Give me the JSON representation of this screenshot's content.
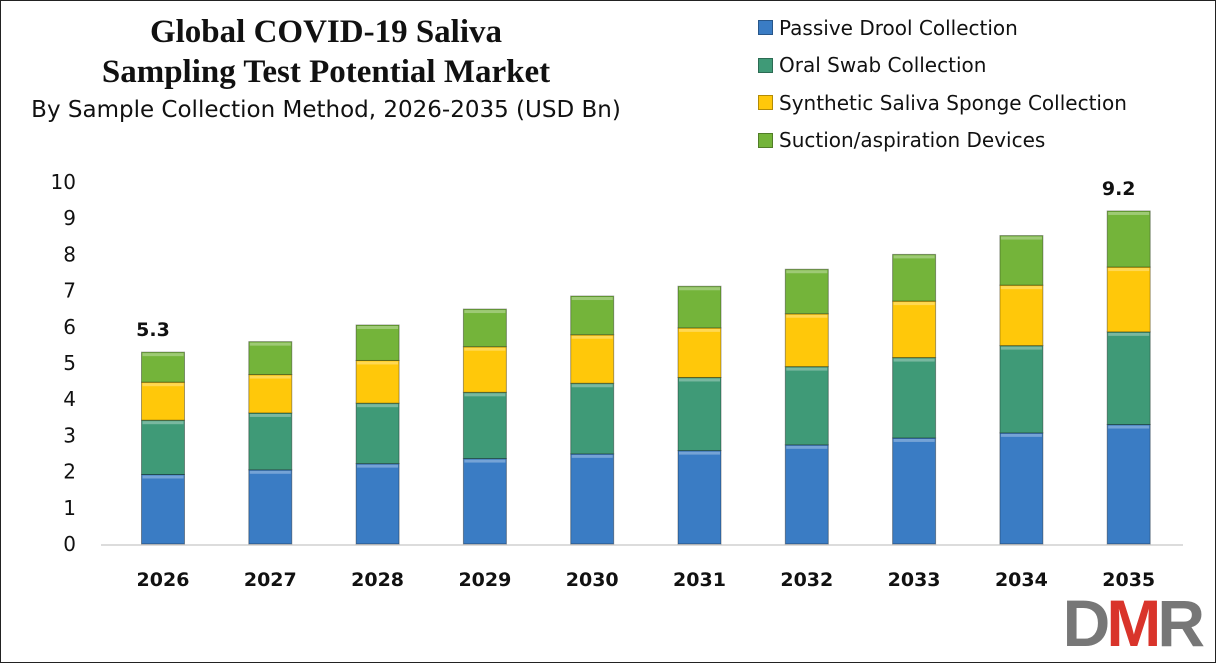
{
  "chart_data": {
    "type": "bar",
    "stacked": true,
    "title": "Global COVID-19 Saliva Sampling Test Potential Market",
    "title_lines": [
      "Global COVID-19 Saliva",
      "Sampling Test Potential Market"
    ],
    "subtitle": "By Sample Collection Method, 2026-2035 (USD Bn)",
    "categories": [
      "2026",
      "2027",
      "2028",
      "2029",
      "2030",
      "2031",
      "2032",
      "2033",
      "2034",
      "2035"
    ],
    "series": [
      {
        "name": "Passive Drool Collection",
        "color": "#3a7cc4",
        "values": [
          1.92,
          2.05,
          2.22,
          2.36,
          2.49,
          2.58,
          2.74,
          2.93,
          3.07,
          3.3
        ]
      },
      {
        "name": "Oral Swab Collection",
        "color": "#3f9a77",
        "values": [
          1.5,
          1.57,
          1.67,
          1.83,
          1.95,
          2.02,
          2.16,
          2.22,
          2.41,
          2.56
        ]
      },
      {
        "name": "Synthetic Saliva Sponge Collection",
        "color": "#ffc80a",
        "values": [
          1.05,
          1.06,
          1.18,
          1.26,
          1.34,
          1.37,
          1.46,
          1.56,
          1.67,
          1.79
        ]
      },
      {
        "name": "Suction/aspiration Devices",
        "color": "#74b43a",
        "values": [
          0.83,
          0.91,
          0.98,
          1.04,
          1.07,
          1.15,
          1.23,
          1.29,
          1.37,
          1.55
        ]
      }
    ],
    "data_labels": [
      {
        "category": "2026",
        "text": "5.3"
      },
      {
        "category": "2035",
        "text": "9.2"
      }
    ],
    "ylim": [
      0,
      10
    ],
    "yticks": [
      "0",
      "1",
      "2",
      "3",
      "4",
      "5",
      "6",
      "7",
      "8",
      "9",
      "10"
    ],
    "xlabel": "",
    "ylabel": "",
    "grid": false,
    "legend": "top-right"
  },
  "logo": {
    "text": [
      "D",
      "M",
      "R"
    ],
    "colors": [
      "#777777",
      "#d9342b",
      "#777777"
    ]
  }
}
